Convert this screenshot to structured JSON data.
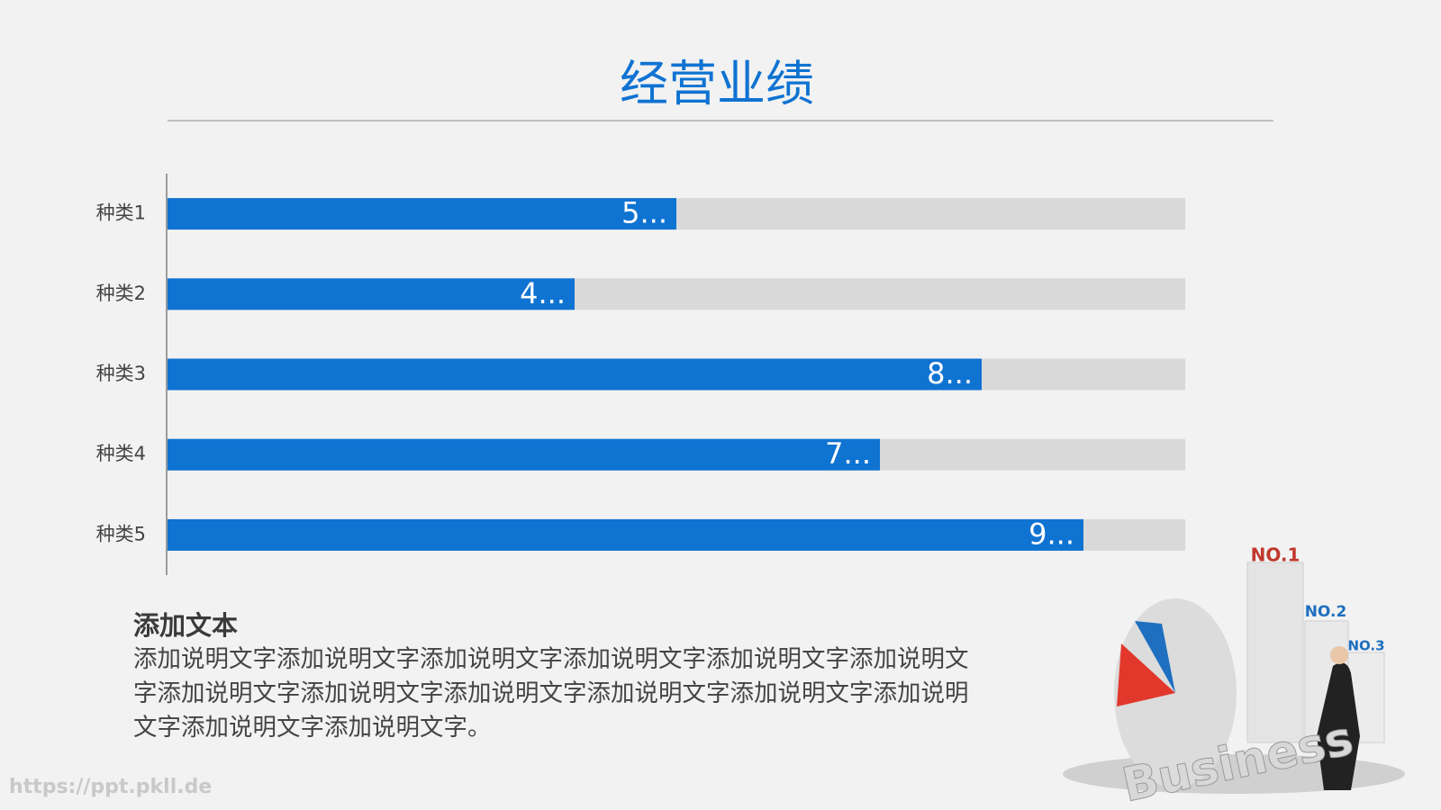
{
  "title": "经营业绩",
  "chart_data": {
    "type": "bar",
    "orientation": "horizontal",
    "categories": [
      "种类1",
      "种类2",
      "种类3",
      "种类4",
      "种类5"
    ],
    "values": [
      50,
      40,
      80,
      70,
      90
    ],
    "value_labels": [
      "5...",
      "4...",
      "8...",
      "7...",
      "9..."
    ],
    "color": "#0f73d2",
    "track_color": "#d9d9d9",
    "xlim": [
      0,
      100
    ]
  },
  "text_block": {
    "heading": "添加文本",
    "body": "添加说明文字添加说明文字添加说明文字添加说明文字添加说明文字添加说明文字添加说明文字添加说明文字添加说明文字添加说明文字添加说明文字添加说明文字添加说明文字添加说明文字。"
  },
  "illustration": {
    "labels": [
      "NO.1",
      "NO.2",
      "NO.3"
    ],
    "word": "Business"
  },
  "watermark": "https://ppt.pkll.de"
}
